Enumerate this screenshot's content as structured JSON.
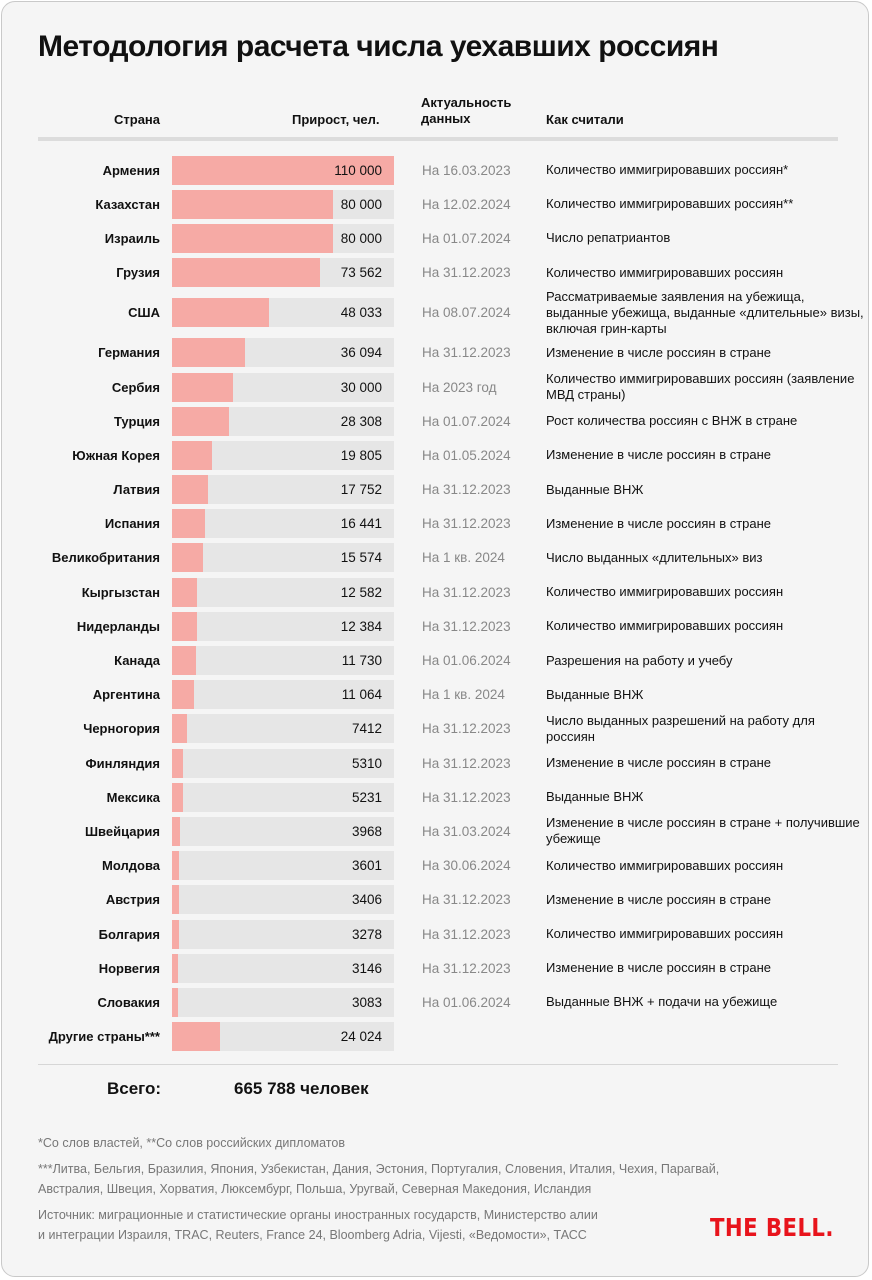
{
  "title": "Методология расчета числа уехавших россиян",
  "headers": {
    "country": "Страна",
    "growth": "Прирост, чел.",
    "date_line1": "Актуальность",
    "date_line2": "данных",
    "method": "Как считали"
  },
  "colors": {
    "bar": "#f6aaa5",
    "bar_bg": "#e6e6e6",
    "logo": "#e8141c"
  },
  "chart_data": {
    "type": "bar",
    "orientation": "horizontal",
    "title": "Методология расчета числа уехавших россиян",
    "xlabel": "Прирост, чел.",
    "xlim": [
      0,
      110000
    ],
    "rows": [
      {
        "country": "Армения",
        "value": 110000,
        "label": "110 000",
        "date": "На 16.03.2023",
        "method": "Количество иммигрировавших россиян*"
      },
      {
        "country": "Казахстан",
        "value": 80000,
        "label": "80 000",
        "date": "На 12.02.2024",
        "method": "Количество иммигрировавших россиян**"
      },
      {
        "country": "Израиль",
        "value": 80000,
        "label": "80 000",
        "date": "На 01.07.2024",
        "method": "Число репатриантов"
      },
      {
        "country": "Грузия",
        "value": 73562,
        "label": "73 562",
        "date": "На 31.12.2023",
        "method": "Количество иммигрировавших россиян"
      },
      {
        "country": "США",
        "value": 48033,
        "label": "48 033",
        "date": "На 08.07.2024",
        "method": "Рассматриваемые заявления на убежища, выданные убежища, выданные «длительные» визы, включая грин-карты"
      },
      {
        "country": "Германия",
        "value": 36094,
        "label": "36 094",
        "date": "На 31.12.2023",
        "method": "Изменение в числе россиян в стране"
      },
      {
        "country": "Сербия",
        "value": 30000,
        "label": "30 000",
        "date": "На 2023 год",
        "method": "Количество иммигрировавших россиян (заявление МВД страны)"
      },
      {
        "country": "Турция",
        "value": 28308,
        "label": "28 308",
        "date": "На 01.07.2024",
        "method": "Рост количества россиян с ВНЖ в стране"
      },
      {
        "country": "Южная Корея",
        "value": 19805,
        "label": "19 805",
        "date": "На 01.05.2024",
        "method": "Изменение в числе россиян в стране"
      },
      {
        "country": "Латвия",
        "value": 17752,
        "label": "17 752",
        "date": "На 31.12.2023",
        "method": "Выданные ВНЖ"
      },
      {
        "country": "Испания",
        "value": 16441,
        "label": "16 441",
        "date": "На 31.12.2023",
        "method": "Изменение в числе россиян в стране"
      },
      {
        "country": "Великобритания",
        "value": 15574,
        "label": "15 574",
        "date": "На 1 кв. 2024",
        "method": "Число выданных «длительных» виз"
      },
      {
        "country": "Кыргызстан",
        "value": 12582,
        "label": "12 582",
        "date": "На 31.12.2023",
        "method": "Количество иммигрировавших россиян"
      },
      {
        "country": "Нидерланды",
        "value": 12384,
        "label": "12 384",
        "date": "На 31.12.2023",
        "method": "Количество иммигрировавших россиян"
      },
      {
        "country": "Канада",
        "value": 11730,
        "label": "11 730",
        "date": "На 01.06.2024",
        "method": "Разрешения на работу и учебу"
      },
      {
        "country": "Аргентина",
        "value": 11064,
        "label": "11 064",
        "date": "На 1 кв. 2024",
        "method": "Выданные ВНЖ"
      },
      {
        "country": "Черногория",
        "value": 7412,
        "label": "7412",
        "date": "На 31.12.2023",
        "method": "Число выданных разрешений на работу для россиян"
      },
      {
        "country": "Финляндия",
        "value": 5310,
        "label": "5310",
        "date": "На 31.12.2023",
        "method": "Изменение в числе россиян в стране"
      },
      {
        "country": "Мексика",
        "value": 5231,
        "label": "5231",
        "date": "На 31.12.2023",
        "method": "Выданные ВНЖ"
      },
      {
        "country": "Швейцария",
        "value": 3968,
        "label": "3968",
        "date": "На 31.03.2024",
        "method": "Изменение в числе россиян в стране + получившие убежище"
      },
      {
        "country": "Молдова",
        "value": 3601,
        "label": "3601",
        "date": "На 30.06.2024",
        "method": "Количество иммигрировавших россиян"
      },
      {
        "country": "Австрия",
        "value": 3406,
        "label": "3406",
        "date": "На 31.12.2023",
        "method": "Изменение в числе россиян в стране"
      },
      {
        "country": "Болгария",
        "value": 3278,
        "label": "3278",
        "date": "На 31.12.2023",
        "method": "Количество иммигрировавших россиян"
      },
      {
        "country": "Норвегия",
        "value": 3146,
        "label": "3146",
        "date": "На 31.12.2023",
        "method": "Изменение в числе россиян в стране"
      },
      {
        "country": "Словакия",
        "value": 3083,
        "label": "3083",
        "date": "На 01.06.2024",
        "method": "Выданные ВНЖ + подачи на убежище"
      },
      {
        "country": "Другие страны***",
        "value": 24024,
        "label": "24 024",
        "date": "",
        "method": ""
      }
    ]
  },
  "total": {
    "label": "Всего:",
    "value": "665 788 человек"
  },
  "footnotes": {
    "note1": "*Со слов властей, **Со слов российских дипломатов",
    "note2_line1": "***Литва, Бельгия, Бразилия, Япония, Узбекистан, Дания, Эстония, Португалия, Словения, Италия, Чехия, Парагвай,",
    "note2_line2": "Австралия, Швеция, Хорватия, Люксембург, Польша, Уругвай, Северная Македония, Исландия",
    "source_line1": "Источник: миграционные и статистические органы иностранных государств, Министерство алии",
    "source_line2": "и интеграции Израиля, TRAC, Reuters, France 24, Bloomberg Adria, Vijesti, «Ведомости», ТАСС"
  },
  "logo": "THE BELL."
}
